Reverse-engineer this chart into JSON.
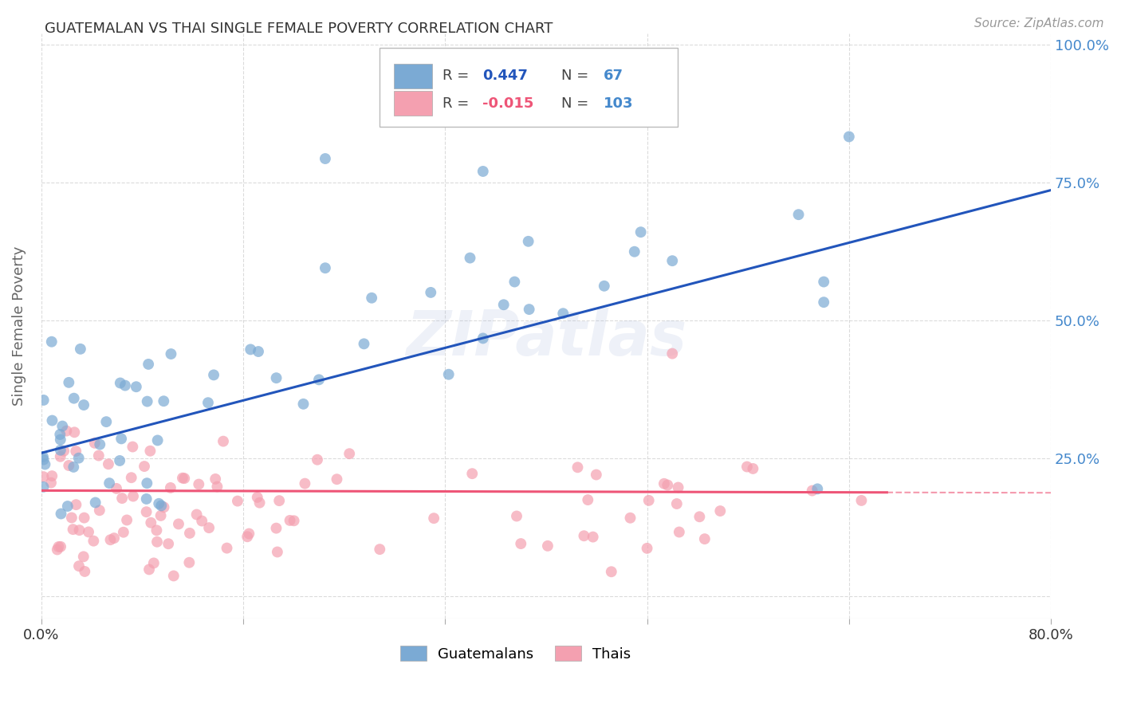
{
  "title": "GUATEMALAN VS THAI SINGLE FEMALE POVERTY CORRELATION CHART",
  "source": "Source: ZipAtlas.com",
  "ylabel": "Single Female Poverty",
  "xlim": [
    0.0,
    0.8
  ],
  "ylim": [
    -0.04,
    1.02
  ],
  "yticks": [
    0.0,
    0.25,
    0.5,
    0.75,
    1.0
  ],
  "ytick_labels_right": [
    "",
    "25.0%",
    "50.0%",
    "75.0%",
    "100.0%"
  ],
  "xtick_vals": [
    0.0,
    0.16,
    0.32,
    0.48,
    0.64,
    0.8
  ],
  "xtick_labels": [
    "0.0%",
    "",
    "",
    "",
    "",
    "80.0%"
  ],
  "R_guatemalan": 0.447,
  "N_guatemalan": 67,
  "R_thai": -0.015,
  "N_thai": 103,
  "blue_dot_color": "#7BAAD4",
  "pink_dot_color": "#F4A0B0",
  "blue_line_color": "#2255BB",
  "pink_line_color": "#EE5577",
  "watermark": "ZIPatlas",
  "background_color": "#FFFFFF",
  "grid_color": "#CCCCCC",
  "title_color": "#333333",
  "axis_label_color": "#666666",
  "right_axis_color": "#4488CC",
  "legend_blue_color": "#7BAAD4",
  "legend_pink_color": "#F4A0B0"
}
